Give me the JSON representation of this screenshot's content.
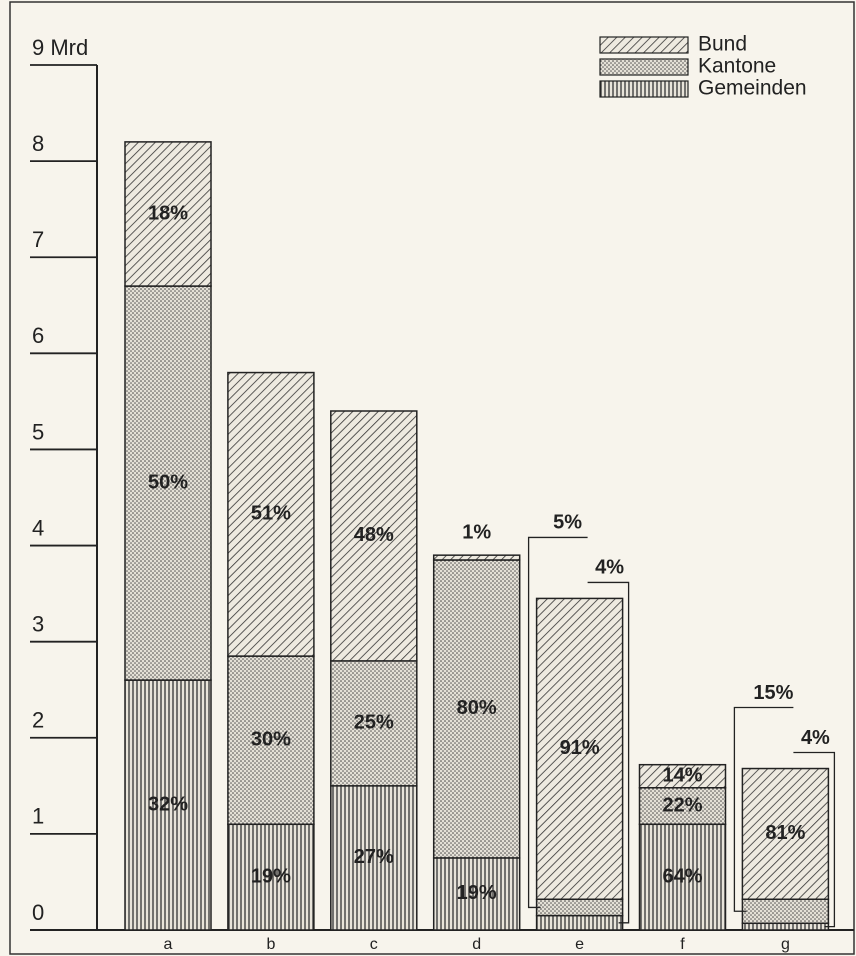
{
  "chart_data": {
    "type": "stacked_bar",
    "categories": [
      "a",
      "b",
      "c",
      "d",
      "e",
      "f",
      "g"
    ],
    "series": [
      {
        "name": "Bund",
        "pattern": "hatch",
        "color": "#222222",
        "values": [
          1.5,
          2.95,
          2.6,
          0.05,
          3.13,
          0.24,
          1.36
        ],
        "labels": [
          "18%",
          "51%",
          "48%",
          "1%",
          "91%",
          "14%",
          "81%"
        ]
      },
      {
        "name": "Kantone",
        "pattern": "dots",
        "color": "#222222",
        "values": [
          4.1,
          1.75,
          1.3,
          3.1,
          0.17,
          0.38,
          0.25
        ],
        "labels": [
          "50%",
          "30%",
          "25%",
          "80%",
          "5%",
          "22%",
          "15%"
        ]
      },
      {
        "name": "Gemeinden",
        "pattern": "vlines",
        "color": "#222222",
        "values": [
          2.6,
          1.1,
          1.5,
          0.75,
          0.15,
          1.1,
          0.07
        ],
        "labels": [
          "32%",
          "19%",
          "27%",
          "19%",
          "4%",
          "64%",
          "4%"
        ]
      }
    ],
    "ylim": [
      0,
      9
    ],
    "yticks": [
      0,
      1,
      2,
      3,
      4,
      5,
      6,
      7,
      8,
      {
        "value": 9,
        "label": "9 Mrd"
      }
    ],
    "legend": "top-right"
  }
}
